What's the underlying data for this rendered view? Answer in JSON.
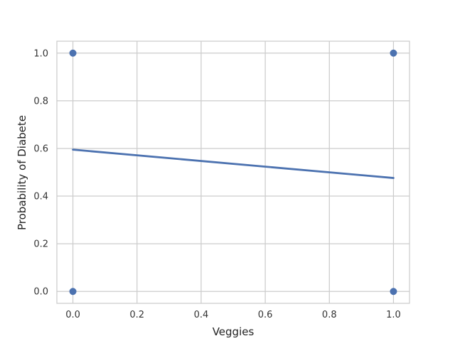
{
  "chart_data": {
    "type": "scatter",
    "title": "",
    "xlabel": "Veggies",
    "ylabel": "Probability of Diabete",
    "xlim": [
      -0.05,
      1.05
    ],
    "ylim": [
      -0.05,
      1.05
    ],
    "xticks": [
      0.0,
      0.2,
      0.4,
      0.6,
      0.8,
      1.0
    ],
    "yticks": [
      0.0,
      0.2,
      0.4,
      0.6,
      0.8,
      1.0
    ],
    "xtick_labels": [
      "0.0",
      "0.2",
      "0.4",
      "0.6",
      "0.8",
      "1.0"
    ],
    "ytick_labels": [
      "0.0",
      "0.2",
      "0.4",
      "0.6",
      "0.8",
      "1.0"
    ],
    "grid": true,
    "points": [
      {
        "x": 0.0,
        "y": 0.0
      },
      {
        "x": 0.0,
        "y": 1.0
      },
      {
        "x": 1.0,
        "y": 0.0
      },
      {
        "x": 1.0,
        "y": 1.0
      }
    ],
    "fit_line": [
      {
        "x": 0.0,
        "y": 0.595
      },
      {
        "x": 1.0,
        "y": 0.476
      }
    ],
    "colors": {
      "series": "#4c72b0",
      "grid": "#cccccc",
      "frame": "#cccccc"
    }
  }
}
